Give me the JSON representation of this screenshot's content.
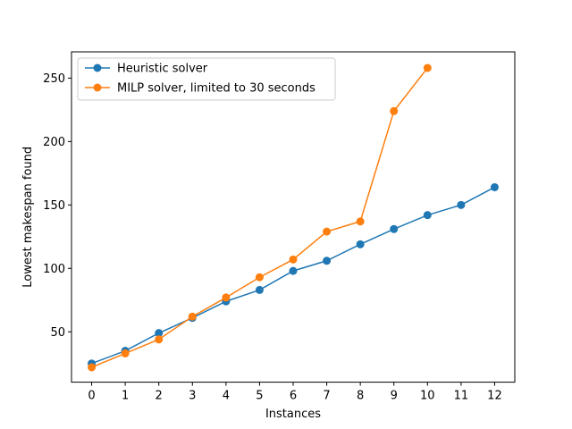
{
  "chart_data": {
    "type": "line",
    "title": "",
    "xlabel": "Instances",
    "ylabel": "Lowest makespan found",
    "xlim": [
      -0.6,
      12.6
    ],
    "ylim": [
      10.3,
      270.7
    ],
    "x_ticks": [
      0,
      1,
      2,
      3,
      4,
      5,
      6,
      7,
      8,
      9,
      10,
      11,
      12
    ],
    "y_ticks": [
      50,
      100,
      150,
      200,
      250
    ],
    "grid": false,
    "legend_position": "top-left",
    "series": [
      {
        "name": "Heuristic solver",
        "color": "#1f77b4",
        "marker": "circle",
        "x": [
          0,
          1,
          2,
          3,
          4,
          5,
          6,
          7,
          8,
          9,
          10,
          11,
          12
        ],
        "y": [
          25,
          35,
          49,
          61,
          74,
          83,
          98,
          106,
          119,
          131,
          142,
          150,
          164
        ]
      },
      {
        "name": "MILP solver, limited to 30 seconds",
        "color": "#ff7f0e",
        "marker": "circle",
        "x": [
          0,
          1,
          2,
          3,
          4,
          5,
          6,
          7,
          8,
          9,
          10
        ],
        "y": [
          22,
          33,
          44,
          62,
          77,
          93,
          107,
          129,
          137,
          224,
          258
        ]
      }
    ]
  }
}
